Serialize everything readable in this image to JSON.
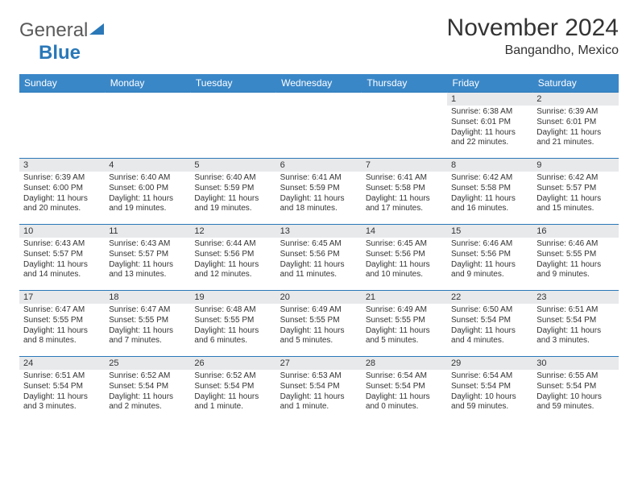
{
  "brand": {
    "general": "General",
    "blue": "Blue"
  },
  "header": {
    "month_year": "November 2024",
    "location": "Bangandho, Mexico"
  },
  "style": {
    "header_bg": "#3a87c8",
    "header_text": "#ffffff",
    "daynum_bg": "#e7e9eb",
    "rule_color": "#2a78b8",
    "body_text": "#333333",
    "month_fontsize": 30,
    "loc_fontsize": 16,
    "weekday_fontsize": 12,
    "daynum_fontsize": 11,
    "cell_fontsize": 10
  },
  "weekdays": [
    "Sunday",
    "Monday",
    "Tuesday",
    "Wednesday",
    "Thursday",
    "Friday",
    "Saturday"
  ],
  "weeks": [
    [
      {
        "n": "",
        "r": "",
        "s": "",
        "d": ""
      },
      {
        "n": "",
        "r": "",
        "s": "",
        "d": ""
      },
      {
        "n": "",
        "r": "",
        "s": "",
        "d": ""
      },
      {
        "n": "",
        "r": "",
        "s": "",
        "d": ""
      },
      {
        "n": "",
        "r": "",
        "s": "",
        "d": ""
      },
      {
        "n": "1",
        "r": "Sunrise: 6:38 AM",
        "s": "Sunset: 6:01 PM",
        "d": "Daylight: 11 hours and 22 minutes."
      },
      {
        "n": "2",
        "r": "Sunrise: 6:39 AM",
        "s": "Sunset: 6:01 PM",
        "d": "Daylight: 11 hours and 21 minutes."
      }
    ],
    [
      {
        "n": "3",
        "r": "Sunrise: 6:39 AM",
        "s": "Sunset: 6:00 PM",
        "d": "Daylight: 11 hours and 20 minutes."
      },
      {
        "n": "4",
        "r": "Sunrise: 6:40 AM",
        "s": "Sunset: 6:00 PM",
        "d": "Daylight: 11 hours and 19 minutes."
      },
      {
        "n": "5",
        "r": "Sunrise: 6:40 AM",
        "s": "Sunset: 5:59 PM",
        "d": "Daylight: 11 hours and 19 minutes."
      },
      {
        "n": "6",
        "r": "Sunrise: 6:41 AM",
        "s": "Sunset: 5:59 PM",
        "d": "Daylight: 11 hours and 18 minutes."
      },
      {
        "n": "7",
        "r": "Sunrise: 6:41 AM",
        "s": "Sunset: 5:58 PM",
        "d": "Daylight: 11 hours and 17 minutes."
      },
      {
        "n": "8",
        "r": "Sunrise: 6:42 AM",
        "s": "Sunset: 5:58 PM",
        "d": "Daylight: 11 hours and 16 minutes."
      },
      {
        "n": "9",
        "r": "Sunrise: 6:42 AM",
        "s": "Sunset: 5:57 PM",
        "d": "Daylight: 11 hours and 15 minutes."
      }
    ],
    [
      {
        "n": "10",
        "r": "Sunrise: 6:43 AM",
        "s": "Sunset: 5:57 PM",
        "d": "Daylight: 11 hours and 14 minutes."
      },
      {
        "n": "11",
        "r": "Sunrise: 6:43 AM",
        "s": "Sunset: 5:57 PM",
        "d": "Daylight: 11 hours and 13 minutes."
      },
      {
        "n": "12",
        "r": "Sunrise: 6:44 AM",
        "s": "Sunset: 5:56 PM",
        "d": "Daylight: 11 hours and 12 minutes."
      },
      {
        "n": "13",
        "r": "Sunrise: 6:45 AM",
        "s": "Sunset: 5:56 PM",
        "d": "Daylight: 11 hours and 11 minutes."
      },
      {
        "n": "14",
        "r": "Sunrise: 6:45 AM",
        "s": "Sunset: 5:56 PM",
        "d": "Daylight: 11 hours and 10 minutes."
      },
      {
        "n": "15",
        "r": "Sunrise: 6:46 AM",
        "s": "Sunset: 5:56 PM",
        "d": "Daylight: 11 hours and 9 minutes."
      },
      {
        "n": "16",
        "r": "Sunrise: 6:46 AM",
        "s": "Sunset: 5:55 PM",
        "d": "Daylight: 11 hours and 9 minutes."
      }
    ],
    [
      {
        "n": "17",
        "r": "Sunrise: 6:47 AM",
        "s": "Sunset: 5:55 PM",
        "d": "Daylight: 11 hours and 8 minutes."
      },
      {
        "n": "18",
        "r": "Sunrise: 6:47 AM",
        "s": "Sunset: 5:55 PM",
        "d": "Daylight: 11 hours and 7 minutes."
      },
      {
        "n": "19",
        "r": "Sunrise: 6:48 AM",
        "s": "Sunset: 5:55 PM",
        "d": "Daylight: 11 hours and 6 minutes."
      },
      {
        "n": "20",
        "r": "Sunrise: 6:49 AM",
        "s": "Sunset: 5:55 PM",
        "d": "Daylight: 11 hours and 5 minutes."
      },
      {
        "n": "21",
        "r": "Sunrise: 6:49 AM",
        "s": "Sunset: 5:55 PM",
        "d": "Daylight: 11 hours and 5 minutes."
      },
      {
        "n": "22",
        "r": "Sunrise: 6:50 AM",
        "s": "Sunset: 5:54 PM",
        "d": "Daylight: 11 hours and 4 minutes."
      },
      {
        "n": "23",
        "r": "Sunrise: 6:51 AM",
        "s": "Sunset: 5:54 PM",
        "d": "Daylight: 11 hours and 3 minutes."
      }
    ],
    [
      {
        "n": "24",
        "r": "Sunrise: 6:51 AM",
        "s": "Sunset: 5:54 PM",
        "d": "Daylight: 11 hours and 3 minutes."
      },
      {
        "n": "25",
        "r": "Sunrise: 6:52 AM",
        "s": "Sunset: 5:54 PM",
        "d": "Daylight: 11 hours and 2 minutes."
      },
      {
        "n": "26",
        "r": "Sunrise: 6:52 AM",
        "s": "Sunset: 5:54 PM",
        "d": "Daylight: 11 hours and 1 minute."
      },
      {
        "n": "27",
        "r": "Sunrise: 6:53 AM",
        "s": "Sunset: 5:54 PM",
        "d": "Daylight: 11 hours and 1 minute."
      },
      {
        "n": "28",
        "r": "Sunrise: 6:54 AM",
        "s": "Sunset: 5:54 PM",
        "d": "Daylight: 11 hours and 0 minutes."
      },
      {
        "n": "29",
        "r": "Sunrise: 6:54 AM",
        "s": "Sunset: 5:54 PM",
        "d": "Daylight: 10 hours and 59 minutes."
      },
      {
        "n": "30",
        "r": "Sunrise: 6:55 AM",
        "s": "Sunset: 5:54 PM",
        "d": "Daylight: 10 hours and 59 minutes."
      }
    ]
  ]
}
